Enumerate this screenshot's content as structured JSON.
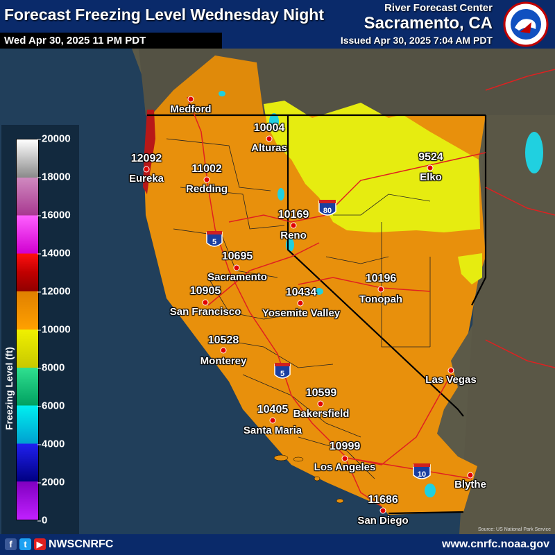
{
  "header": {
    "title": "Forecast Freezing Level Wednesday Night",
    "valid_time": "Wed Apr 30, 2025 11 PM PDT",
    "center_label": "River Forecast Center",
    "center_name": "Sacramento, CA",
    "issued": "Issued Apr 30, 2025 7:04 AM PDT",
    "logo_text": "NATIONAL WEATHER SERVICE"
  },
  "legend": {
    "title": "Freezing Level (ft)",
    "ticks": [
      "20000",
      "18000",
      "16000",
      "14000",
      "12000",
      "10000",
      "8000",
      "6000",
      "4000",
      "2000",
      "0"
    ]
  },
  "cities": [
    {
      "name": "Medford",
      "value": ""
    },
    {
      "name": "Alturas",
      "value": "10004"
    },
    {
      "name": "Eureka",
      "value": "12092"
    },
    {
      "name": "Redding",
      "value": "11002"
    },
    {
      "name": "Elko",
      "value": "9524"
    },
    {
      "name": "Reno",
      "value": "10169"
    },
    {
      "name": "Sacramento",
      "value": "10695"
    },
    {
      "name": "Tonopah",
      "value": "10196"
    },
    {
      "name": "San Francisco",
      "value": "10905"
    },
    {
      "name": "Yosemite Valley",
      "value": "10434"
    },
    {
      "name": "Monterey",
      "value": "10528"
    },
    {
      "name": "Las Vegas",
      "value": ""
    },
    {
      "name": "Bakersfield",
      "value": "10599"
    },
    {
      "name": "Santa Maria",
      "value": "10405"
    },
    {
      "name": "Los Angeles",
      "value": "10999"
    },
    {
      "name": "Blythe",
      "value": ""
    },
    {
      "name": "San Diego",
      "value": "11686"
    }
  ],
  "highways": {
    "i5_north": "5",
    "i5_south": "5",
    "i80": "80",
    "i10": "10"
  },
  "footer": {
    "handle": "NWSCNRFC",
    "website": "www.cnrfc.noaa.gov",
    "credit": "Source: US National Park Service"
  },
  "colors": {
    "header_bg": "#0a2a6a",
    "ocean": "#1f3f5f",
    "orange": "#e8900c",
    "yellow": "#e6ec10",
    "red": "#b81818"
  }
}
